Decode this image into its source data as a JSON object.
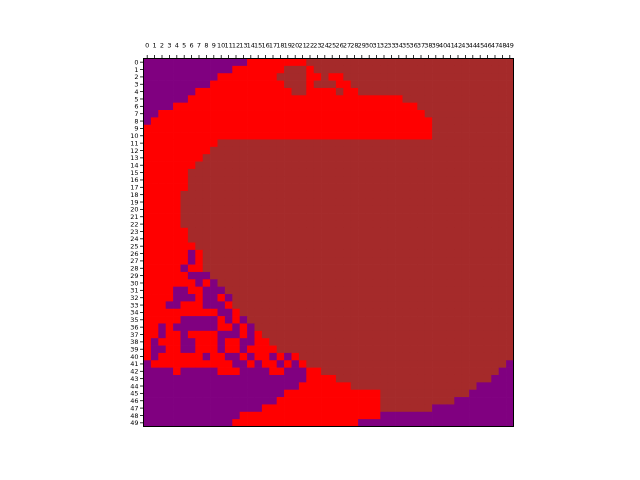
{
  "chart_data": {
    "type": "heatmap",
    "title": "",
    "xlabel": "",
    "ylabel": "",
    "rows": 50,
    "cols": 50,
    "x_ticks": [
      "0",
      "1",
      "2",
      "3",
      "4",
      "5",
      "6",
      "7",
      "8",
      "9",
      "10",
      "11",
      "12",
      "13",
      "14",
      "15",
      "16",
      "17",
      "18",
      "19",
      "20",
      "21",
      "22",
      "23",
      "24",
      "25",
      "26",
      "27",
      "28",
      "29",
      "30",
      "31",
      "32",
      "33",
      "34",
      "35",
      "36",
      "37",
      "38",
      "39",
      "40",
      "41",
      "42",
      "43",
      "44",
      "45",
      "46",
      "47",
      "48",
      "49"
    ],
    "y_ticks": [
      "0",
      "1",
      "2",
      "3",
      "4",
      "5",
      "6",
      "7",
      "8",
      "9",
      "10",
      "11",
      "12",
      "13",
      "14",
      "15",
      "16",
      "17",
      "18",
      "19",
      "20",
      "21",
      "22",
      "23",
      "24",
      "25",
      "26",
      "27",
      "28",
      "29",
      "30",
      "31",
      "32",
      "33",
      "34",
      "35",
      "36",
      "37",
      "38",
      "39",
      "40",
      "41",
      "42",
      "43",
      "44",
      "45",
      "46",
      "47",
      "48",
      "49"
    ],
    "x_axis_position": "top",
    "grid": false,
    "legend": "none",
    "color_map": {
      "P": "#800080",
      "R": "#ff0000",
      "B": "#a52a2a"
    },
    "grid_rows": [
      "PPPPPPPPPPPPPPRRRRRRRRBBBBBBBBBBBBBBBBBBBBBBBBBBBB",
      "PPPPPPPPPPPPRRRRRRRBBBRBBBBBBBBBBBBBBBBBBBBBBBBBBB",
      "PPPPPPPPPPRRRRRRRRBBBBRRBRRBBBBBBBBBBBBBBBBBBBBBBB",
      "PPPPPPPPPRRRRRRRRRRBBBRBBBRRBBBBBBBBBBBBBBBBBBBBBB",
      "PPPPPPPRRRRRRRRRRRRRBBRRRRBRRBBBBBBBBBBBBBBBBBBBBB",
      "PPPPPPRRRRRRRRRRRRRRRRRRRRRRRRRRRRRBBBBBBBBBBBBBBB",
      "PPPPRRRRRRRRRRRRRRRRRRRRRRRRRRRRRRRRRBBBBBBBBBBBBB",
      "PPRRRRRRRRRRRRRRRRRRRRRRRRRRRRRRRRRRRRBBBBBBBBBBBB",
      "PRRRRRRRRRRRRRRRRRRRRRRRRRRRRRRRRRRRRRRBBBBBBBBBBB",
      "RRRRRRRRRRRRRRRRRRRRRRRRRRRRRRRRRRRRRRRBBBBBBBBBBB",
      "RRRRRRRRRRRRRRRRRRRRRRRRRRRRRRRRRRRRRRRBBBBBBBBBBB",
      "RRRRRRRRRRBBBBBBBBBBBBBBBBBBBBBBBBBBBBBBBBBBBBBBBB",
      "RRRRRRRRRBBBBBBBBBBBBBBBBBBBBBBBBBBBBBBBBBBBBBBBBB",
      "RRRRRRRRBBBBBBBBBBBBBBBBBBBBBBBBBBBBBBBBBBBBBBBBBB",
      "RRRRRRRBBBBBBBBBBBBBBBBBBBBBBBBBBBBBBBBBBBBBBBBBBB",
      "RRRRRRBBBBBBBBBBBBBBBBBBBBBBBBBBBBBBBBBBBBBBBBBBBB",
      "RRRRRRBBBBBBBBBBBBBBBBBBBBBBBBBBBBBBBBBBBBBBBBBBBB",
      "RRRRRRBBBBBBBBBBBBBBBBBBBBBBBBBBBBBBBBBBBBBBBBBBBB",
      "RRRRRBBBBBBBBBBBBBBBBBBBBBBBBBBBBBBBBBBBBBBBBBBBBB",
      "RRRRRBBBBBBBBBBBBBBBBBBBBBBBBBBBBBBBBBBBBBBBBBBBBB",
      "RRRRRBBBBBBBBBBBBBBBBBBBBBBBBBBBBBBBBBBBBBBBBBBBBB",
      "RRRRRBBBBBBBBBBBBBBBBBBBBBBBBBBBBBBBBBBBBBBBBBBBBB",
      "RRRRRBBBBBBBBBBBBBBBBBBBBBBBBBBBBBBBBBBBBBBBBBBBBB",
      "RRRRRRBBBBBBBBBBBBBBBBBBBBBBBBBBBBBBBBBBBBBBBBBBBB",
      "RRRRRRBBBBBBBBBBBBBBBBBBBBBBBBBBBBBBBBBBBBBBBBBBBB",
      "RRRRRRRBBBBBBBBBBBBBBBBBBBBBBBBBBBBBBBBBBBBBBBBBBB",
      "RRRRRRPRBBBBBBBBBBBBBBBBBBBBBBBBBBBBBBBBBBBBBBBBBB",
      "RRRRRRPRBBBBBBBBBBBBBBBBBBBBBBBBBBBBBBBBBBBBBBBBBB",
      "RRRRRPRRBBBBBBBBBBBBBBBBBBBBBBBBBBBBBBBBBBBBBBBBBB",
      "RRRRRRPPPBBBBBBBBBBBBBBBBBBBBBBBBBBBBBBBBBBBBBBBBB",
      "RRRRRRRPRPBBBBBBBBBBBBBBBBBBBBBBBBBBBBBBBBBBBBBBBB",
      "RRRRPPRRPPPBBBBBBBBBBBBBBBBBBBBBBBBBBBBBBBBBBBBBBB",
      "RRRRPPPRPPRPBBBBBBBBBBBBBBBBBBBBBBBBBBBBBBBBBBBBBB",
      "RRRPPRRRPPPRBBBBBBBBBBBBBBBBBBBBBBBBBBBBBBBBBBBBBB",
      "RRRRRRRRRRPPRBBBBBBBBBBBBBBBBBBBBBBBBBBBBBBBBBBBBB",
      "RRRRRPPPPPRPRPBBBBBBBBBBBBBBBBBBBBBBBBBBBBBBBBBBBB",
      "RRPRPPPPPPRRPRPBBBBBBBBBBBBBBBBBBBBBBBBBBBBBBBBBBB",
      "RRPRRPRRRRPPPRPRBBBBBBBBBBBBBBBBBBBBBBBBBBBBBBBBBB",
      "RPRRRPPRRRPRRPPRRBBBBBBBBBBBBBBBBBBBBBBBBBBBBBBBBB",
      "RPPRRPPRRRPRRPRRRRBBBBBBBBBBBBBBBBBBBBBBBBBBBBBBBB",
      "RPRRRRRRPRRPPRPRRPRPRBBBBBBBBBBBBBBBBBBBBBBBBBBBBB",
      "PRRRRRRRRRRRPPRPRRPRPRBBBBBBBBBBBBBBBBBBBBBBBBBBBP",
      "PPPPRPPPPPRRRPPPPRRPPPRRBBBBBBBBBBBBBBBBBBBBBBBBPP",
      "PPPPPPPPPPPPPPPPPPPPPPRRRRBBBBBBBBBBBBBBBBBBBBBPPP",
      "PPPPPPPPPPPPPPPPPPPPPRRRRRRRBBBBBBBBBBBBBBBBBPPPPP",
      "PPPPPPPPPPPPPPPPPPPRRRRRRRRRRRRRBBBBBBBBBBBBPPPPPP",
      "PPPPPPPPPPPPPPPPPPRRRRRRRRRRRRRRBBBBBBBBBBPPPPPPPP",
      "PPPPPPPPPPPPPPPPRRRRRRRRRRRRRRRRBBBBBBBPPPPPPPPPPP",
      "PPPPPPPPPPPPPRRRRRRRRRRRRRRRRRRRPPPPPPPPPPPPPPPPPP",
      "PPPPPPPPPPPPRRRRRRRRRRRRRRRRRPPPPPPPPPPPPPPPPPPPPP"
    ]
  }
}
